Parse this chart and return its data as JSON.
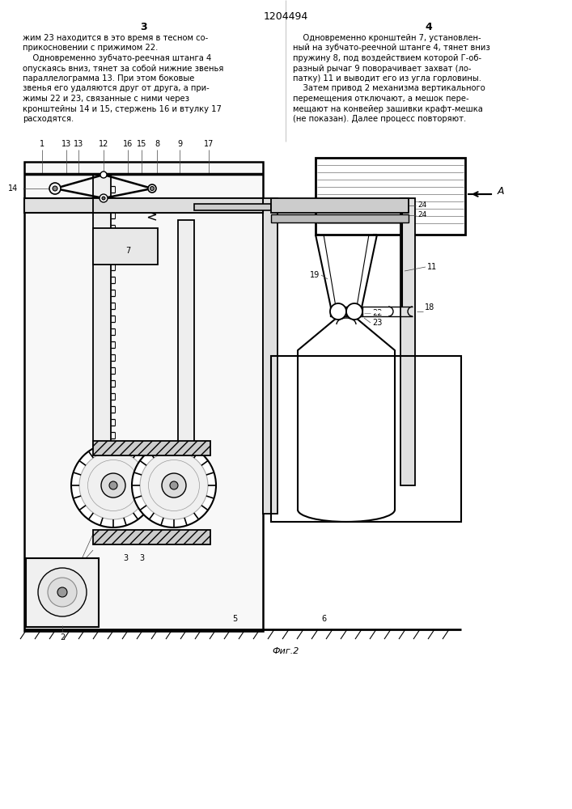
{
  "title": "1204494",
  "page_left": "3",
  "page_right": "4",
  "col_left_text": [
    "жим 23 находится в это время в тесном со-",
    "прикосновении с прижимом 22.",
    "    Одновременно зубчато-реечная штанга 4",
    "опускаясь вниз, тянет за собой нижние звенья",
    "параллелограмма 13. При этом боковые",
    "звенья его удаляются друг от друга, а при-",
    "жимы 22 и 23, связанные с ними через",
    "кронштейны 14 и 15, стержень 16 и втулку 17",
    "расходятся."
  ],
  "col_right_text": [
    "    Одновременно кронштейн 7, установлен-",
    "ный на зубчато-реечной штанге 4, тянет вниз",
    "пружину 8, под воздействием которой Г-об-",
    "разный рычаг 9 поворачивает захват (ло-",
    "патку) 11 и выводит его из угла горловины.",
    "    Затем привод 2 механизма вертикального",
    "перемещения отключают, а мешок пере-",
    "мещают на конвейер зашивки крафт-мешка",
    "(не показан). Далее процесс повторяют."
  ],
  "fig_caption": "Фиг.2",
  "bg_color": "#ffffff",
  "text_color": "#000000",
  "line_color": "#000000"
}
